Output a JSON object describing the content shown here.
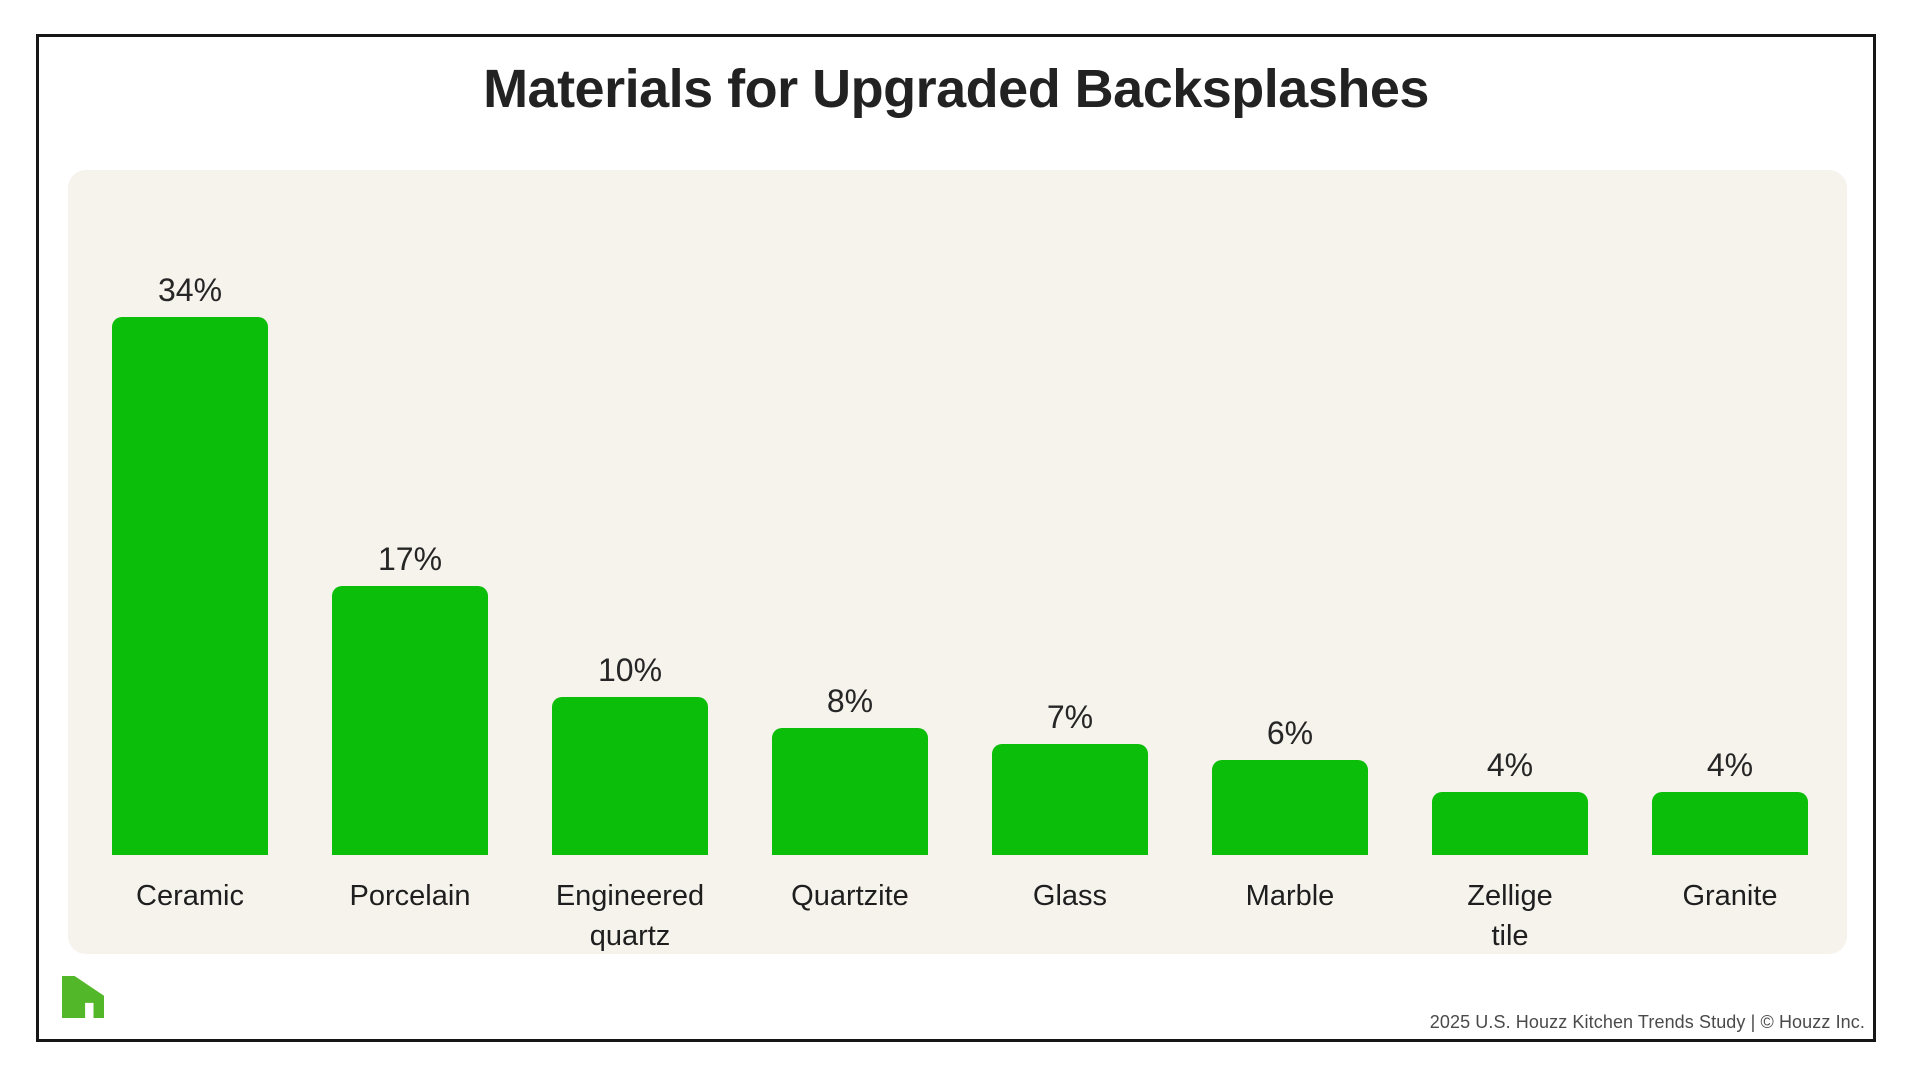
{
  "title": "Materials for Upgraded Backsplashes",
  "chart_data": {
    "type": "bar",
    "title": "Materials for Upgraded Backsplashes",
    "categories": [
      "Ceramic",
      "Porcelain",
      "Engineered quartz",
      "Quartzite",
      "Glass",
      "Marble",
      "Zellige tile",
      "Granite"
    ],
    "categories_display": [
      "Ceramic",
      "Porcelain",
      "Engineered\nquartz",
      "Quartzite",
      "Glass",
      "Marble",
      "Zellige\ntile",
      "Granite"
    ],
    "values": [
      34,
      17,
      10,
      8,
      7,
      6,
      4,
      4
    ],
    "value_labels": [
      "34%",
      "17%",
      "10%",
      "8%",
      "7%",
      "6%",
      "4%",
      "4%"
    ],
    "xlabel": "",
    "ylabel": "",
    "ylim": [
      0,
      34
    ],
    "grid": false,
    "legend": false,
    "bar_color": "#0ABE0A",
    "panel_background": "#F6F2EC"
  },
  "footer": {
    "attribution": "2025 U.S. Houzz Kitchen Trends Study  |  © Houzz Inc.",
    "logo_name": "houzz-logo",
    "logo_color": "#52B829"
  }
}
